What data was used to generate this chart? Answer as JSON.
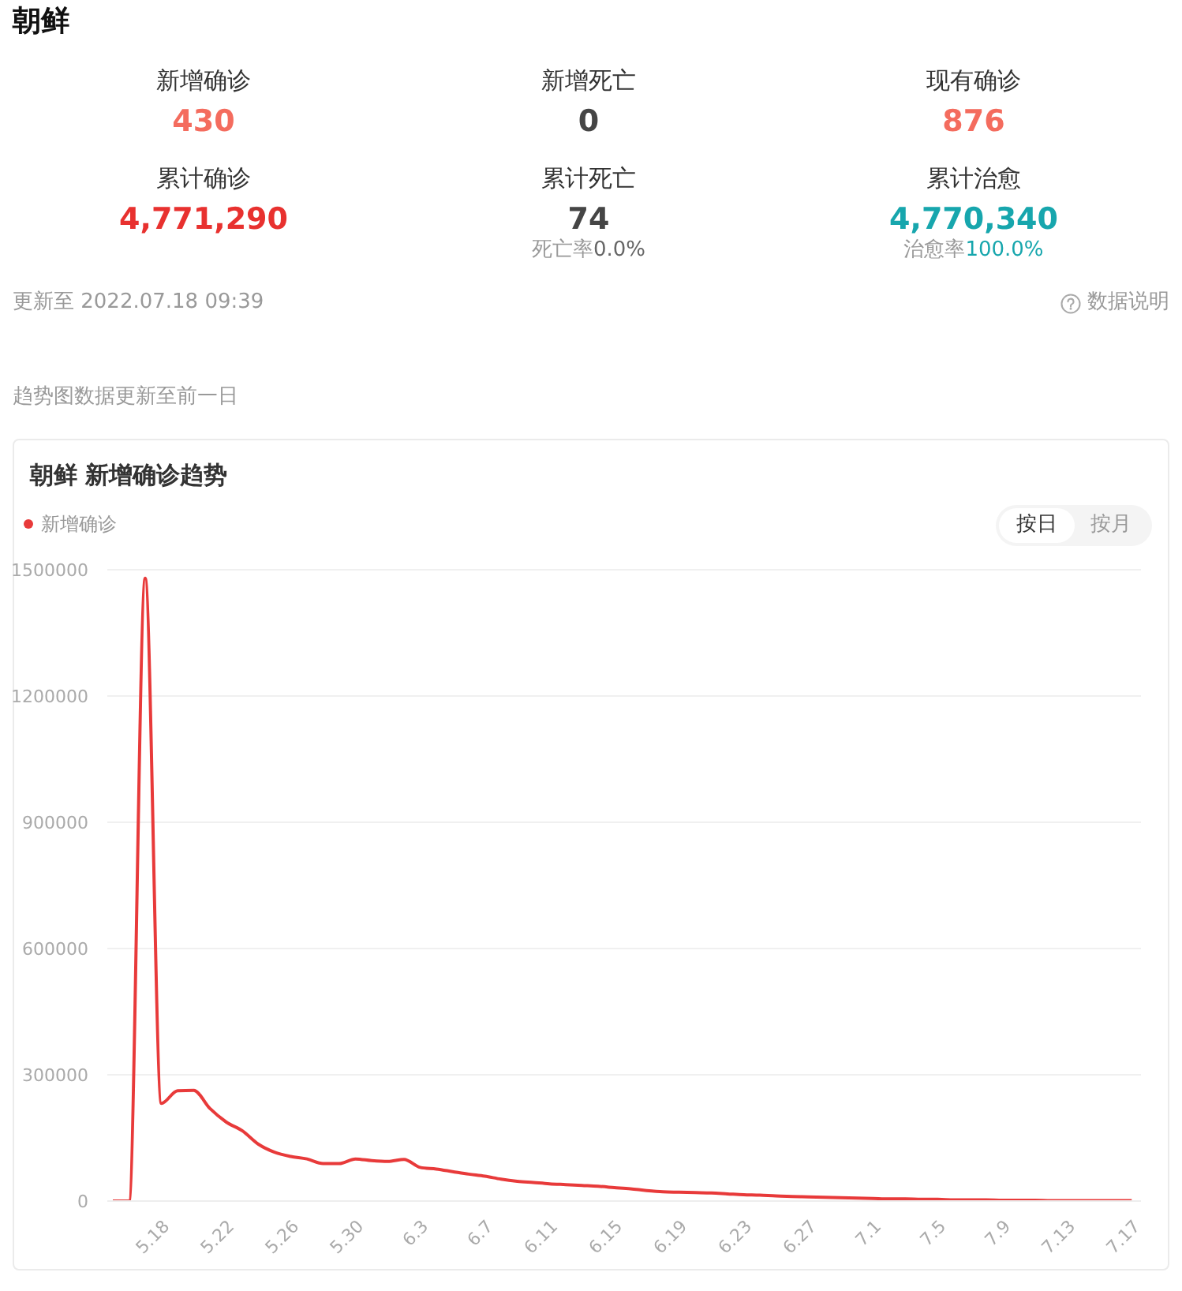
{
  "chart_data": [
    {
      "type": "other",
      "title": "朝鲜",
      "annotations": [
        "新增确诊",
        "430",
        "新增死亡",
        "0",
        "现有确诊",
        "876",
        "累计确诊",
        "4,771,290",
        "累计死亡",
        "74",
        "累计治愈",
        "4,770,340",
        "死亡率",
        "0.0%",
        "治愈率",
        "100.0%",
        "更新至 2022.07.18 09:39",
        "数据说明"
      ]
    },
    {
      "type": "line",
      "title": "朝鲜 新增确诊趋势",
      "categories": [
        null,
        null,
        null,
        "5.18",
        null,
        null,
        null,
        "5.22",
        null,
        null,
        null,
        "5.26",
        null,
        null,
        null,
        "5.30",
        null,
        null,
        null,
        "6.3",
        null,
        null,
        null,
        "6.7",
        null,
        null,
        null,
        "6.11",
        null,
        null,
        null,
        "6.15",
        null,
        null,
        null,
        "6.19",
        null,
        null,
        null,
        "6.23",
        null,
        null,
        null,
        "6.27",
        null,
        null,
        null,
        "7.1",
        null,
        null,
        null,
        "7.5",
        null,
        null,
        null,
        "7.9",
        null,
        null,
        null,
        "7.13",
        null,
        null,
        null,
        "7.17"
      ],
      "series": [
        {
          "name": "新增确诊",
          "color": "#e83a3a",
          "values": [
            0,
            0,
            1480000,
            232000,
            262000,
            263000,
            220000,
            188000,
            167000,
            135000,
            116000,
            106000,
            100000,
            89000,
            89000,
            100000,
            96000,
            94000,
            99000,
            80000,
            76000,
            70000,
            64000,
            59000,
            52000,
            47000,
            44000,
            41000,
            39000,
            37000,
            35000,
            32000,
            29000,
            25000,
            22000,
            21000,
            20000,
            19000,
            17000,
            15000,
            14000,
            12000,
            11000,
            10000,
            9000,
            8000,
            7000,
            6000,
            5000,
            5000,
            4000,
            4000,
            3000,
            3000,
            3000,
            2000,
            2000,
            2000,
            1000,
            1000,
            1000,
            1000,
            1000,
            1000
          ]
        }
      ],
      "ylim": [
        0,
        1500000
      ],
      "yticks": [
        0,
        300000,
        600000,
        900000,
        1200000,
        1500000
      ],
      "grid": "y",
      "legend": "top left",
      "annotations": [
        "趋势图数据更新至前一日",
        "按日",
        "按月"
      ]
    }
  ]
}
